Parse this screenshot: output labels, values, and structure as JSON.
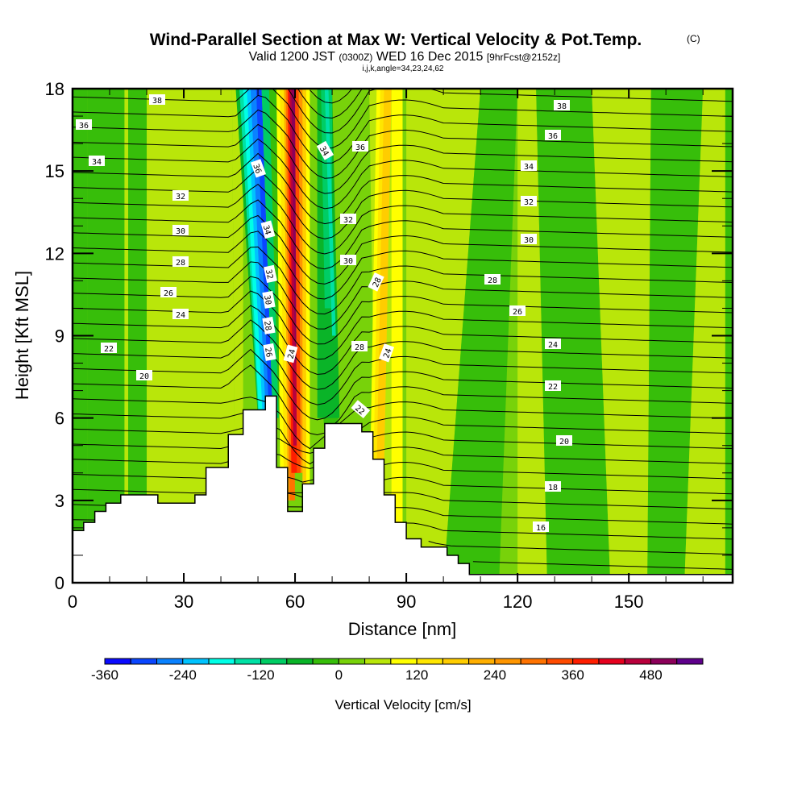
{
  "chart_data": {
    "type": "heatmap",
    "title": "Wind-Parallel Section at Max W: Vertical Velocity & Pot.Temp.",
    "title_mark": "(C)",
    "subtitle": {
      "valid": "Valid 1200 JST",
      "utc": "(0300Z)",
      "date": "WED 16 Dec 2015",
      "forecast": "[9hrFcst@2152z]",
      "indices": "i,j,k,angle=34,23,24,62"
    },
    "xlabel": "Distance [nm]",
    "ylabel": "Height [Kft MSL]",
    "xlim": [
      0,
      178
    ],
    "ylim": [
      0,
      18
    ],
    "xticks": [
      "0",
      "30",
      "60",
      "90",
      "120",
      "150"
    ],
    "xtick_values": [
      0,
      30,
      60,
      90,
      120,
      150
    ],
    "yticks": [
      "0",
      "3",
      "6",
      "9",
      "12",
      "15",
      "18"
    ],
    "ytick_values": [
      0,
      3,
      6,
      9,
      12,
      15,
      18
    ],
    "colorbar": {
      "label": "Vertical Velocity [cm/s]",
      "min": -360,
      "max": 560,
      "step": 40,
      "tick_labels": [
        "-360",
        "-240",
        "-120",
        "0",
        "120",
        "240",
        "360",
        "480"
      ],
      "tick_values": [
        -360,
        -240,
        -120,
        0,
        120,
        240,
        360,
        480
      ],
      "colors": [
        "#0a0aff",
        "#0a46ff",
        "#0a82ff",
        "#00c3ff",
        "#00ffe6",
        "#00e1a5",
        "#00cd64",
        "#0ab428",
        "#37be0a",
        "#78d20a",
        "#b9e60a",
        "#ffff00",
        "#ffe600",
        "#ffcd00",
        "#ffaf00",
        "#ff9600",
        "#ff7300",
        "#ff4b00",
        "#ff1e00",
        "#e6001e",
        "#b9003c",
        "#8c005a",
        "#5f008c"
      ]
    },
    "contour_field": "Potential Temperature",
    "contour_labels": {
      "left": [
        "38",
        "36",
        "34",
        "32",
        "30",
        "28",
        "26",
        "24",
        "22",
        "20"
      ],
      "updraft_west": [
        "36",
        "34",
        "32",
        "30",
        "28",
        "26"
      ],
      "updraft_core": [
        "24"
      ],
      "updraft_east": [
        "34",
        "36",
        "32",
        "30",
        "28",
        "28",
        "24",
        "22"
      ],
      "right": [
        "38",
        "36",
        "34",
        "32",
        "30",
        "28",
        "26",
        "24",
        "22",
        "20",
        "18",
        "16"
      ]
    },
    "terrain_kft": [
      [
        0,
        1.9
      ],
      [
        3,
        2.2
      ],
      [
        6,
        2.6
      ],
      [
        9,
        2.9
      ],
      [
        13,
        3.2
      ],
      [
        23,
        2.9
      ],
      [
        33,
        3.2
      ],
      [
        36,
        4.2
      ],
      [
        42,
        5.4
      ],
      [
        46,
        6.3
      ],
      [
        52,
        6.8
      ],
      [
        55,
        4.2
      ],
      [
        58,
        2.6
      ],
      [
        62,
        3.6
      ],
      [
        65,
        4.9
      ],
      [
        68,
        5.8
      ],
      [
        78,
        5.5
      ],
      [
        81,
        4.5
      ],
      [
        84,
        3.2
      ],
      [
        87,
        2.2
      ],
      [
        90,
        1.6
      ],
      [
        94,
        1.3
      ],
      [
        101,
        1.0
      ],
      [
        104,
        0.7
      ],
      [
        107,
        0.3
      ],
      [
        150,
        0.3
      ],
      [
        178,
        0.6
      ]
    ]
  }
}
